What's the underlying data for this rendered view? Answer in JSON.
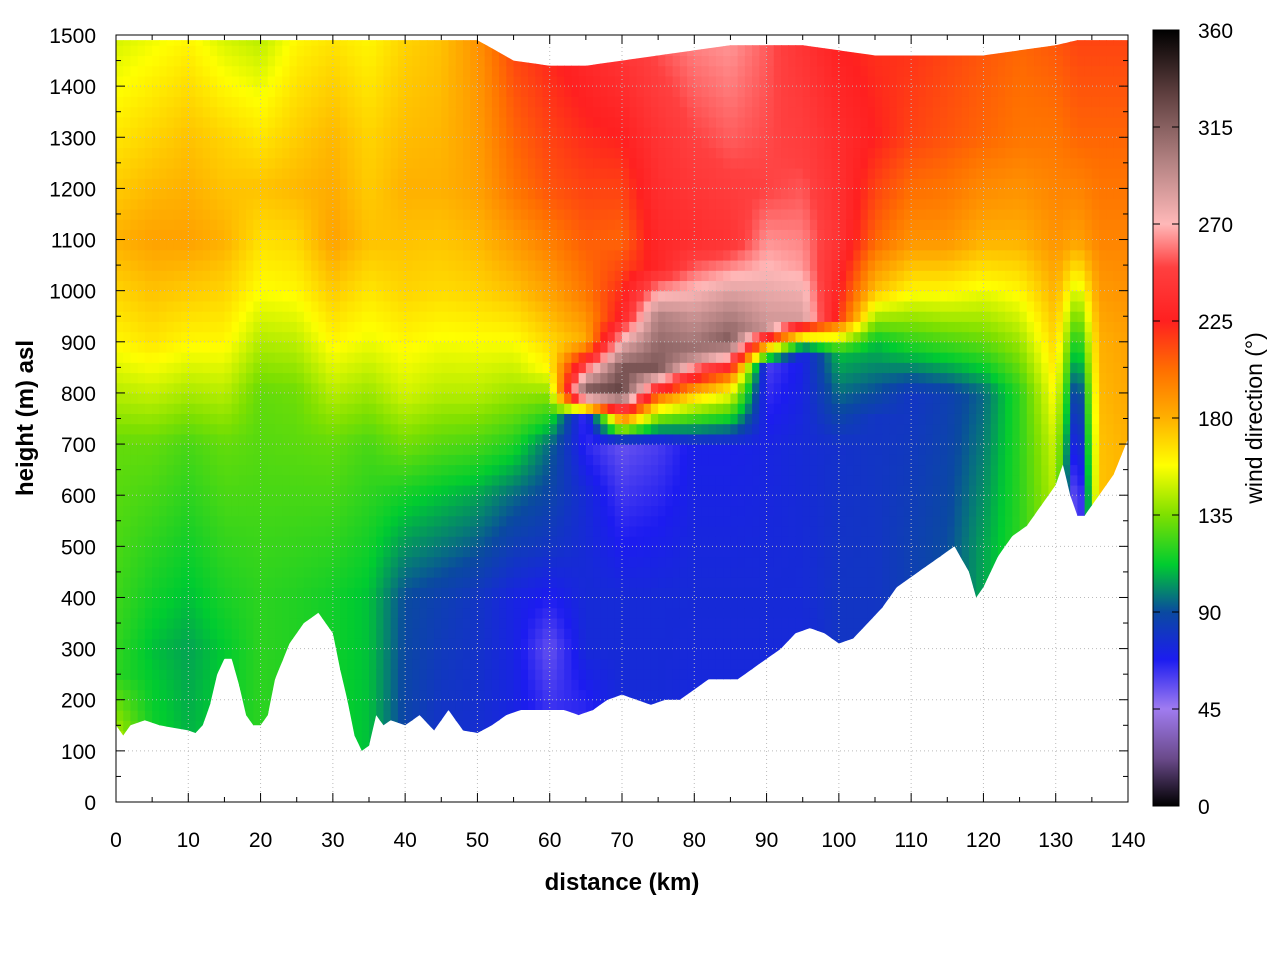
{
  "chart_data": {
    "type": "heatmap",
    "title": "",
    "xlabel": "distance (km)",
    "ylabel": "height (m) asl",
    "colorbar_label": "wind direction (°)",
    "xlim": [
      0,
      140
    ],
    "ylim": [
      0,
      1500
    ],
    "clim": [
      0,
      360
    ],
    "grid": true,
    "x_ticks": [
      "0",
      "10",
      "20",
      "30",
      "40",
      "50",
      "60",
      "70",
      "80",
      "90",
      "100",
      "110",
      "120",
      "130",
      "140"
    ],
    "y_ticks": [
      "0",
      "100",
      "200",
      "300",
      "400",
      "500",
      "600",
      "700",
      "800",
      "900",
      "1000",
      "1100",
      "1200",
      "1300",
      "1400",
      "1500"
    ],
    "colorbar_ticks": [
      "0",
      "45",
      "90",
      "135",
      "180",
      "225",
      "270",
      "315",
      "360"
    ],
    "colormap": [
      {
        "value": 0,
        "color": "#000000"
      },
      {
        "value": 22,
        "color": "#6a4a8a"
      },
      {
        "value": 45,
        "color": "#a07cf0"
      },
      {
        "value": 68,
        "color": "#1c1cf0"
      },
      {
        "value": 90,
        "color": "#0a4aa0"
      },
      {
        "value": 112,
        "color": "#00cc30"
      },
      {
        "value": 135,
        "color": "#7ee000"
      },
      {
        "value": 158,
        "color": "#ffff00"
      },
      {
        "value": 180,
        "color": "#ffb000"
      },
      {
        "value": 202,
        "color": "#ff7000"
      },
      {
        "value": 225,
        "color": "#ff2020"
      },
      {
        "value": 250,
        "color": "#ff4040"
      },
      {
        "value": 270,
        "color": "#ffb8b8"
      },
      {
        "value": 300,
        "color": "#b08080"
      },
      {
        "value": 330,
        "color": "#604040"
      },
      {
        "value": 360,
        "color": "#000000"
      }
    ],
    "terrain": {
      "x": [
        0,
        1,
        2,
        4,
        6,
        8,
        10,
        11,
        12,
        13,
        14,
        15,
        16,
        17,
        18,
        19,
        20,
        21,
        22,
        24,
        26,
        28,
        30,
        31,
        32,
        33,
        34,
        35,
        36,
        37,
        38,
        40,
        42,
        44,
        46,
        48,
        50,
        52,
        54,
        56,
        58,
        60,
        62,
        64,
        66,
        68,
        70,
        72,
        74,
        76,
        78,
        80,
        82,
        84,
        86,
        88,
        90,
        92,
        94,
        96,
        98,
        100,
        102,
        104,
        106,
        108,
        110,
        112,
        114,
        116,
        118,
        119,
        120,
        122,
        124,
        126,
        128,
        130,
        131,
        132,
        133,
        134,
        136,
        138,
        140
      ],
      "y": [
        150,
        130,
        150,
        160,
        150,
        145,
        140,
        135,
        150,
        190,
        250,
        280,
        280,
        230,
        170,
        150,
        150,
        170,
        240,
        310,
        350,
        370,
        330,
        260,
        200,
        130,
        100,
        110,
        170,
        150,
        160,
        150,
        170,
        140,
        180,
        140,
        135,
        150,
        170,
        180,
        180,
        180,
        180,
        170,
        180,
        200,
        210,
        200,
        190,
        200,
        200,
        220,
        240,
        240,
        240,
        260,
        280,
        300,
        330,
        340,
        330,
        310,
        320,
        350,
        380,
        420,
        440,
        460,
        480,
        500,
        450,
        400,
        420,
        480,
        520,
        540,
        580,
        620,
        660,
        600,
        560,
        560,
        600,
        640,
        710
      ]
    },
    "columns": {
      "x": [
        0,
        5,
        10,
        15,
        20,
        25,
        30,
        35,
        40,
        45,
        50,
        55,
        60,
        65,
        70,
        75,
        80,
        85,
        90,
        95,
        100,
        105,
        110,
        115,
        120,
        125,
        130,
        133,
        136,
        140
      ],
      "top": [
        1490,
        1490,
        1490,
        1490,
        1490,
        1490,
        1490,
        1490,
        1490,
        1490,
        1490,
        1450,
        1440,
        1440,
        1450,
        1460,
        1470,
        1480,
        1480,
        1480,
        1470,
        1460,
        1460,
        1460,
        1460,
        1470,
        1480,
        1490,
        1490,
        1490
      ],
      "profiles": [
        [
          [
            0,
            170
          ],
          [
            250,
            120
          ],
          [
            700,
            130
          ],
          [
            900,
            160
          ],
          [
            1100,
            180
          ],
          [
            1300,
            165
          ],
          [
            1500,
            150
          ]
        ],
        [
          [
            0,
            120
          ],
          [
            300,
            110
          ],
          [
            700,
            130
          ],
          [
            900,
            165
          ],
          [
            1100,
            185
          ],
          [
            1300,
            170
          ],
          [
            1500,
            155
          ]
        ],
        [
          [
            0,
            110
          ],
          [
            300,
            105
          ],
          [
            700,
            125
          ],
          [
            900,
            160
          ],
          [
            1100,
            185
          ],
          [
            1300,
            175
          ],
          [
            1500,
            160
          ]
        ],
        [
          [
            0,
            115
          ],
          [
            300,
            112
          ],
          [
            700,
            130
          ],
          [
            900,
            160
          ],
          [
            1100,
            180
          ],
          [
            1300,
            170
          ],
          [
            1500,
            150
          ]
        ],
        [
          [
            0,
            120
          ],
          [
            400,
            120
          ],
          [
            800,
            130
          ],
          [
            1000,
            158
          ],
          [
            1200,
            175
          ],
          [
            1500,
            145
          ]
        ],
        [
          [
            0,
            118
          ],
          [
            400,
            118
          ],
          [
            800,
            132
          ],
          [
            1000,
            160
          ],
          [
            1200,
            178
          ],
          [
            1500,
            160
          ]
        ],
        [
          [
            0,
            115
          ],
          [
            400,
            115
          ],
          [
            700,
            130
          ],
          [
            900,
            160
          ],
          [
            1100,
            185
          ],
          [
            1300,
            178
          ],
          [
            1500,
            165
          ]
        ],
        [
          [
            0,
            110
          ],
          [
            400,
            110
          ],
          [
            700,
            125
          ],
          [
            900,
            155
          ],
          [
            1100,
            175
          ],
          [
            1300,
            170
          ],
          [
            1500,
            160
          ]
        ],
        [
          [
            0,
            85
          ],
          [
            400,
            90
          ],
          [
            600,
            115
          ],
          [
            800,
            150
          ],
          [
            1000,
            170
          ],
          [
            1200,
            180
          ],
          [
            1500,
            170
          ]
        ],
        [
          [
            0,
            75
          ],
          [
            400,
            85
          ],
          [
            600,
            110
          ],
          [
            800,
            145
          ],
          [
            1000,
            168
          ],
          [
            1200,
            180
          ],
          [
            1500,
            175
          ]
        ],
        [
          [
            0,
            75
          ],
          [
            400,
            80
          ],
          [
            600,
            105
          ],
          [
            800,
            145
          ],
          [
            1000,
            170
          ],
          [
            1200,
            185
          ],
          [
            1500,
            190
          ]
        ],
        [
          [
            0,
            72
          ],
          [
            400,
            72
          ],
          [
            600,
            95
          ],
          [
            800,
            140
          ],
          [
            1000,
            175
          ],
          [
            1200,
            200
          ],
          [
            1500,
            215
          ]
        ],
        [
          [
            0,
            75
          ],
          [
            300,
            55
          ],
          [
            500,
            80
          ],
          [
            700,
            95
          ],
          [
            850,
            160
          ],
          [
            1000,
            185
          ],
          [
            1200,
            210
          ],
          [
            1500,
            225
          ]
        ],
        [
          [
            0,
            50
          ],
          [
            300,
            75
          ],
          [
            600,
            75
          ],
          [
            750,
            60
          ],
          [
            800,
            330
          ],
          [
            900,
            180
          ],
          [
            1000,
            200
          ],
          [
            1200,
            215
          ],
          [
            1500,
            235
          ]
        ],
        [
          [
            0,
            75
          ],
          [
            400,
            75
          ],
          [
            700,
            55
          ],
          [
            800,
            330
          ],
          [
            850,
            320
          ],
          [
            950,
            230
          ],
          [
            1100,
            205
          ],
          [
            1300,
            225
          ],
          [
            1500,
            245
          ]
        ],
        [
          [
            0,
            75
          ],
          [
            400,
            75
          ],
          [
            700,
            60
          ],
          [
            780,
            175
          ],
          [
            850,
            320
          ],
          [
            950,
            300
          ],
          [
            1050,
            230
          ],
          [
            1300,
            240
          ],
          [
            1500,
            255
          ]
        ],
        [
          [
            0,
            72
          ],
          [
            400,
            75
          ],
          [
            700,
            70
          ],
          [
            800,
            175
          ],
          [
            880,
            310
          ],
          [
            950,
            290
          ],
          [
            1100,
            235
          ],
          [
            1300,
            250
          ],
          [
            1500,
            262
          ]
        ],
        [
          [
            0,
            72
          ],
          [
            400,
            75
          ],
          [
            700,
            70
          ],
          [
            820,
            175
          ],
          [
            900,
            320
          ],
          [
            980,
            290
          ],
          [
            1100,
            240
          ],
          [
            1300,
            255
          ],
          [
            1500,
            265
          ]
        ],
        [
          [
            0,
            72
          ],
          [
            400,
            75
          ],
          [
            700,
            72
          ],
          [
            850,
            60
          ],
          [
            930,
            290
          ],
          [
            1050,
            270
          ],
          [
            1200,
            250
          ],
          [
            1500,
            255
          ]
        ],
        [
          [
            0,
            72
          ],
          [
            400,
            75
          ],
          [
            700,
            75
          ],
          [
            880,
            70
          ],
          [
            950,
            285
          ],
          [
            1050,
            265
          ],
          [
            1250,
            250
          ],
          [
            1500,
            240
          ]
        ],
        [
          [
            0,
            80
          ],
          [
            400,
            80
          ],
          [
            700,
            78
          ],
          [
            880,
            110
          ],
          [
            950,
            220
          ],
          [
            1100,
            240
          ],
          [
            1300,
            235
          ],
          [
            1500,
            225
          ]
        ],
        [
          [
            0,
            80
          ],
          [
            500,
            80
          ],
          [
            750,
            80
          ],
          [
            900,
            110
          ],
          [
            1000,
            175
          ],
          [
            1100,
            205
          ],
          [
            1300,
            225
          ],
          [
            1500,
            220
          ]
        ],
        [
          [
            0,
            85
          ],
          [
            500,
            85
          ],
          [
            800,
            80
          ],
          [
            900,
            120
          ],
          [
            1000,
            160
          ],
          [
            1100,
            190
          ],
          [
            1300,
            215
          ],
          [
            1500,
            220
          ]
        ],
        [
          [
            0,
            90
          ],
          [
            500,
            90
          ],
          [
            800,
            85
          ],
          [
            900,
            125
          ],
          [
            1000,
            160
          ],
          [
            1100,
            190
          ],
          [
            1300,
            210
          ],
          [
            1500,
            215
          ]
        ],
        [
          [
            0,
            110
          ],
          [
            500,
            105
          ],
          [
            800,
            95
          ],
          [
            900,
            130
          ],
          [
            1000,
            155
          ],
          [
            1100,
            180
          ],
          [
            1300,
            205
          ],
          [
            1500,
            210
          ]
        ],
        [
          [
            0,
            120
          ],
          [
            600,
            120
          ],
          [
            800,
            120
          ],
          [
            900,
            140
          ],
          [
            1000,
            160
          ],
          [
            1100,
            180
          ],
          [
            1300,
            200
          ],
          [
            1500,
            205
          ]
        ],
        [
          [
            0,
            120
          ],
          [
            700,
            150
          ],
          [
            900,
            170
          ],
          [
            1100,
            190
          ],
          [
            1300,
            200
          ],
          [
            1500,
            210
          ]
        ],
        [
          [
            0,
            40
          ],
          [
            600,
            40
          ],
          [
            800,
            75
          ],
          [
            900,
            110
          ],
          [
            1100,
            185
          ],
          [
            1300,
            205
          ],
          [
            1500,
            215
          ]
        ],
        [
          [
            0,
            170
          ],
          [
            700,
            175
          ],
          [
            900,
            180
          ],
          [
            1100,
            195
          ],
          [
            1300,
            205
          ],
          [
            1500,
            215
          ]
        ],
        [
          [
            0,
            180
          ],
          [
            700,
            180
          ],
          [
            900,
            185
          ],
          [
            1100,
            195
          ],
          [
            1300,
            205
          ],
          [
            1500,
            215
          ]
        ]
      ]
    }
  }
}
